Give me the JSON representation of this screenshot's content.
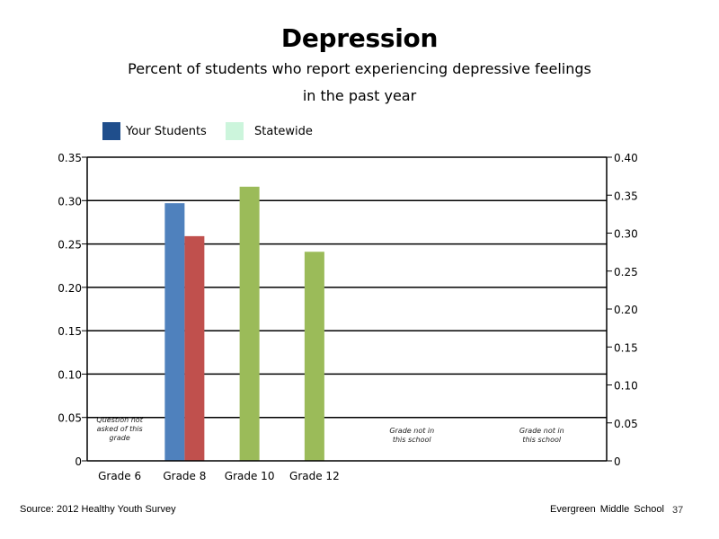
{
  "slide": {
    "footer_source": "Source: 2012 Healthy Youth Survey",
    "footer_school": "Evergreen Middle School",
    "page_number": "37"
  },
  "legend": [
    {
      "label": "Your Students",
      "color": "#1f4e8c"
    },
    {
      "label": "Statewide",
      "color": "#ccf5dc"
    }
  ],
  "colors": {
    "grade8_your_students": "#4f81bd",
    "grade8_statewide": "#c0504d",
    "upper_grades": "#9bbb59"
  },
  "chart_data": {
    "type": "bar",
    "title": "Depression",
    "subtitle": [
      "Percent of students who report experiencing depressive feelings",
      "in the past year"
    ],
    "categories": [
      "Grade 6",
      "Grade 8",
      "Grade 10",
      "Grade 12"
    ],
    "series": [
      {
        "name": "Your Students",
        "values": [
          null,
          0.297,
          null,
          null
        ]
      },
      {
        "name": "Statewide",
        "values": [
          null,
          0.259,
          0.316,
          0.241
        ]
      }
    ],
    "bars": [
      {
        "category": "Grade 8",
        "series": "Your Students",
        "value": 0.297,
        "color": "#4f81bd"
      },
      {
        "category": "Grade 8",
        "series": "Statewide",
        "value": 0.259,
        "color": "#c0504d"
      },
      {
        "category": "Grade 10",
        "series": "Statewide",
        "value": 0.316,
        "color": "#9bbb59"
      },
      {
        "category": "Grade 12",
        "series": "Statewide",
        "value": 0.241,
        "color": "#9bbb59"
      }
    ],
    "left_axis": {
      "min": 0,
      "max": 0.35,
      "ticks": [
        "0",
        "0.05",
        "0.10",
        "0.15",
        "0.20",
        "0.25",
        "0.30",
        "0.35"
      ]
    },
    "right_axis": {
      "min": 0,
      "max": 0.4,
      "ticks": [
        "0",
        "0.05",
        "0.10",
        "0.15",
        "0.20",
        "0.25",
        "0.30",
        "0.35",
        "0.40"
      ]
    },
    "annotations": [
      {
        "category": "Grade 6",
        "lines": [
          "Question not",
          "asked of this",
          "grade"
        ]
      },
      {
        "slot": 5,
        "lines": [
          "Grade not in",
          "this school"
        ]
      },
      {
        "slot": 7,
        "lines": [
          "Grade not in",
          "this school"
        ]
      }
    ],
    "grid": true,
    "legend_position": "top-left"
  }
}
